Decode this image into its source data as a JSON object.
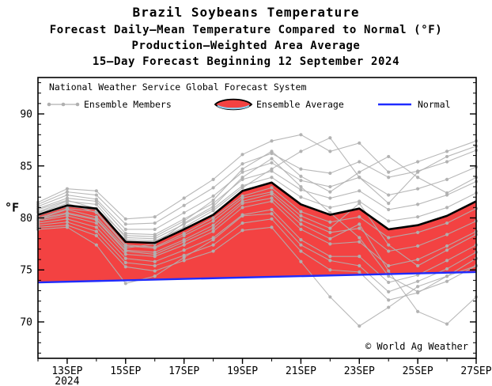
{
  "header": {
    "title": "Brazil Soybeans Temperature",
    "subtitle1": "Forecast Daily—Mean Temperature Compared to Normal (°F)",
    "subtitle2": "Production—Weighted Area Average",
    "subtitle3": "15—Day Forecast Beginning 12 September 2024"
  },
  "legend": {
    "source": "National Weather Service Global Forecast System",
    "members_label": "Ensemble Members",
    "average_label": "Ensemble Average",
    "normal_label": "Normal"
  },
  "footer": {
    "credit": "© World Ag Weather"
  },
  "chart_data": {
    "type": "line",
    "title": "Brazil Soybeans Temperature",
    "y_axis_label": "°F",
    "ylim": [
      66.5,
      93.5
    ],
    "y_ticks": [
      70,
      75,
      80,
      85,
      90
    ],
    "x_start_day": 0,
    "x_end_day": 15,
    "x_ticks": [
      {
        "pos": 1,
        "label": "13SEP",
        "sublabel": "2024"
      },
      {
        "pos": 3,
        "label": "15SEP"
      },
      {
        "pos": 5,
        "label": "17SEP"
      },
      {
        "pos": 7,
        "label": "19SEP"
      },
      {
        "pos": 9,
        "label": "21SEP"
      },
      {
        "pos": 11,
        "label": "23SEP"
      },
      {
        "pos": 13,
        "label": "25SEP"
      },
      {
        "pos": 15,
        "label": "27SEP"
      }
    ],
    "ensemble_average": [
      80.3,
      81.2,
      80.9,
      77.7,
      77.6,
      78.9,
      80.3,
      82.6,
      83.4,
      81.3,
      80.3,
      80.9,
      78.9,
      79.3,
      80.2,
      81.6
    ],
    "normal": [
      73.8,
      74.8
    ],
    "ensemble_members": [
      [
        80.0,
        80.9,
        80.6,
        77.4,
        77.2,
        78.5,
        80.0,
        82.1,
        82.9,
        80.6,
        79.6,
        80.1,
        78.1,
        78.6,
        79.5,
        80.9
      ],
      [
        80.6,
        81.6,
        81.3,
        78.1,
        78.0,
        79.4,
        80.9,
        83.1,
        83.9,
        82.0,
        81.0,
        81.6,
        79.7,
        80.1,
        81.0,
        82.4
      ],
      [
        79.9,
        80.5,
        79.9,
        76.9,
        76.7,
        77.9,
        79.3,
        81.6,
        82.3,
        79.8,
        78.6,
        79.0,
        76.8,
        77.3,
        78.4,
        79.7
      ],
      [
        80.9,
        81.9,
        81.6,
        78.5,
        78.4,
        79.9,
        81.4,
        83.7,
        84.5,
        82.7,
        81.9,
        82.6,
        80.8,
        81.3,
        82.2,
        83.5
      ],
      [
        79.7,
        80.2,
        79.5,
        76.5,
        76.3,
        77.4,
        78.7,
        81.0,
        81.6,
        78.9,
        77.5,
        77.7,
        75.4,
        76.0,
        77.3,
        78.7
      ],
      [
        81.1,
        82.2,
        81.8,
        78.9,
        78.9,
        80.5,
        82.1,
        84.4,
        85.3,
        83.6,
        83.0,
        83.9,
        82.2,
        82.8,
        83.7,
        84.9
      ],
      [
        79.5,
        79.9,
        79.1,
        76.1,
        75.8,
        76.9,
        78.1,
        80.3,
        80.8,
        77.9,
        76.3,
        76.3,
        73.8,
        74.5,
        75.9,
        77.4
      ],
      [
        81.3,
        82.5,
        82.2,
        79.4,
        79.5,
        81.2,
        82.9,
        85.2,
        86.2,
        84.7,
        84.3,
        85.4,
        83.9,
        84.5,
        85.4,
        86.5
      ],
      [
        79.3,
        79.6,
        78.7,
        75.7,
        75.4,
        76.4,
        77.4,
        79.5,
        79.9,
        76.8,
        75.0,
        74.8,
        72.1,
        72.8,
        74.4,
        76.1
      ],
      [
        81.5,
        82.8,
        82.6,
        79.9,
        80.1,
        81.9,
        83.7,
        86.1,
        87.4,
        88.0,
        86.4,
        87.2,
        84.4,
        85.4,
        86.4,
        87.4
      ],
      [
        79.1,
        79.3,
        78.3,
        75.3,
        74.9,
        75.9,
        76.8,
        78.8,
        79.1,
        75.8,
        72.4,
        69.6,
        71.4,
        73.4,
        74.4,
        75.4
      ],
      [
        80.2,
        81.1,
        80.8,
        77.9,
        77.8,
        79.1,
        80.7,
        82.9,
        84.7,
        86.4,
        87.7,
        83.9,
        81.4,
        84.4,
        85.9,
        86.9
      ],
      [
        80.5,
        81.4,
        80.5,
        77.3,
        77.1,
        78.3,
        79.7,
        81.9,
        82.5,
        80.2,
        79.0,
        81.4,
        77.4,
        75.4,
        76.9,
        78.4
      ],
      [
        79.9,
        80.8,
        80.1,
        77.1,
        77.5,
        79.5,
        81.1,
        83.9,
        85.7,
        83.0,
        80.5,
        78.1,
        74.4,
        72.9,
        73.9,
        75.4
      ],
      [
        80.8,
        81.7,
        80.9,
        78.3,
        78.2,
        79.7,
        81.7,
        84.7,
        86.4,
        84.0,
        82.5,
        84.4,
        85.9,
        83.9,
        82.4,
        83.9
      ],
      [
        79.8,
        80.4,
        79.8,
        76.8,
        76.5,
        77.7,
        79.0,
        81.4,
        81.9,
        79.4,
        78.0,
        79.4,
        74.9,
        71.0,
        69.8,
        72.4
      ],
      [
        78.9,
        79.1,
        77.4,
        73.7,
        74.4,
        76.2,
        77.9,
        80.2,
        80.4,
        77.4,
        75.9,
        75.4,
        72.9,
        73.9,
        75.1,
        76.7
      ]
    ],
    "colors": {
      "fill_above": "#f34242",
      "members": "#b0b0b0",
      "normal": "#1f2bff",
      "average": "#000000"
    }
  }
}
